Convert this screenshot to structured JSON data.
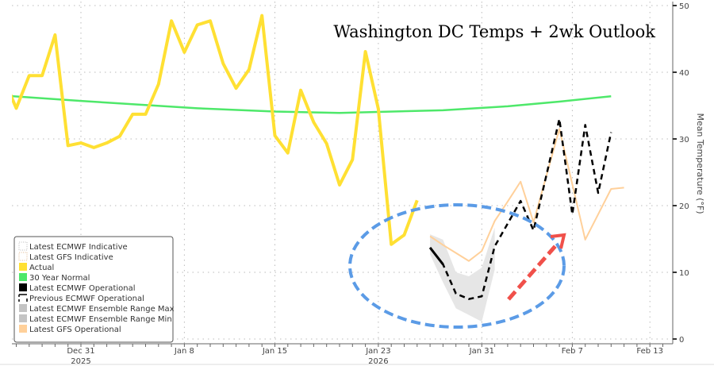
{
  "chart_data": {
    "type": "line",
    "title": "Washington DC Temps + 2wk Outlook",
    "ylabel": "Mean Temperature (°F)",
    "xlabel": "",
    "ylim": [
      0,
      50
    ],
    "yticks": [
      "0",
      "10",
      "20",
      "30",
      "40",
      "50"
    ],
    "xticks": [
      {
        "label": "Dec 31",
        "date": "2025-12-31",
        "year": "2025"
      },
      {
        "label": "Jan 8",
        "date": "2026-01-08",
        "year": ""
      },
      {
        "label": "Jan 15",
        "date": "2026-01-15",
        "year": ""
      },
      {
        "label": "Jan 23",
        "date": "2026-01-23",
        "year": "2026"
      },
      {
        "label": "Jan 31",
        "date": "2026-01-31",
        "year": ""
      },
      {
        "label": "Feb 7",
        "date": "2026-02-07",
        "year": ""
      },
      {
        "label": "Feb 13",
        "date": "2026-02-13",
        "year": ""
      }
    ],
    "grid": true,
    "legend_position": "bottom-left",
    "legend": [
      {
        "name": "Latest ECMWF Indicative",
        "swatch": "dotted",
        "color": "#bbbbbb"
      },
      {
        "name": "Latest GFS Indicative",
        "swatch": "dotted",
        "color": "#e0b890"
      },
      {
        "name": "Actual",
        "swatch": "solid",
        "color": "#ffe033"
      },
      {
        "name": "30 Year Normal",
        "swatch": "solid",
        "color": "#4ee86a"
      },
      {
        "name": "Latest ECMWF Operational",
        "swatch": "solid",
        "color": "#000000"
      },
      {
        "name": "Previous ECMWF Operational",
        "swatch": "dashed",
        "color": "#000000"
      },
      {
        "name": "Latest ECMWF Ensemble Range Max",
        "swatch": "solid",
        "color": "#c4c4c4"
      },
      {
        "name": "Latest ECMWF Ensemble Range Min",
        "swatch": "solid",
        "color": "#c4c4c4"
      },
      {
        "name": "Latest GFS Operational",
        "swatch": "solid",
        "color": "#ffd09a"
      }
    ],
    "series": [
      {
        "name": "Actual",
        "color": "#ffe033",
        "style": "solid",
        "x": [
          "2025-12-25",
          "2025-12-26",
          "2025-12-27",
          "2025-12-28",
          "2025-12-29",
          "2025-12-30",
          "2025-12-31",
          "2026-01-01",
          "2026-01-02",
          "2026-01-03",
          "2026-01-04",
          "2026-01-05",
          "2026-01-06",
          "2026-01-07",
          "2026-01-08",
          "2026-01-09",
          "2026-01-10",
          "2026-01-11",
          "2026-01-12",
          "2026-01-13",
          "2026-01-14",
          "2026-01-15",
          "2026-01-16",
          "2026-01-17",
          "2026-01-18",
          "2026-01-19",
          "2026-01-20",
          "2026-01-21",
          "2026-01-22",
          "2026-01-23",
          "2026-01-24",
          "2026-01-25",
          "2026-01-26"
        ],
        "y": [
          39.2,
          34.6,
          39.5,
          39.5,
          45.6,
          29.0,
          29.4,
          28.7,
          29.4,
          30.4,
          33.7,
          33.7,
          38.2,
          47.7,
          43.0,
          47.1,
          47.7,
          41.3,
          37.6,
          40.4,
          48.5,
          30.5,
          27.9,
          37.3,
          32.5,
          29.3,
          23.1,
          26.9,
          43.1,
          34.5,
          14.2,
          15.6,
          20.8
        ]
      },
      {
        "name": "30 Year Normal",
        "color": "#4ee86a",
        "style": "solid",
        "x": [
          "2025-12-25",
          "2025-12-31",
          "2026-01-09",
          "2026-01-15",
          "2026-01-20",
          "2026-01-28",
          "2026-02-02",
          "2026-02-06",
          "2026-02-10"
        ],
        "y": [
          36.5,
          35.7,
          34.6,
          34.1,
          33.9,
          34.3,
          34.9,
          35.6,
          36.4
        ]
      },
      {
        "name": "Latest ECMWF Operational",
        "color": "#000000",
        "style": "solid",
        "x": [
          "2026-01-27",
          "2026-01-28"
        ],
        "y": [
          13.7,
          11.2
        ]
      },
      {
        "name": "Previous ECMWF Operational",
        "color": "#000000",
        "style": "dashed",
        "x": [
          "2026-01-27",
          "2026-01-28",
          "2026-01-29",
          "2026-01-30",
          "2026-01-31",
          "2026-02-01",
          "2026-02-02",
          "2026-02-03",
          "2026-02-04",
          "2026-02-05",
          "2026-02-06",
          "2026-02-07",
          "2026-02-08",
          "2026-02-09",
          "2026-02-10"
        ],
        "y": [
          13.7,
          11.2,
          6.8,
          6.0,
          6.4,
          13.9,
          17.3,
          20.7,
          16.3,
          24.6,
          33.0,
          18.7,
          32.1,
          21.9,
          31.0
        ]
      },
      {
        "name": "Latest GFS Operational",
        "color": "#ffd09a",
        "style": "solid",
        "x": [
          "2026-01-27",
          "2026-01-28",
          "2026-01-29",
          "2026-01-30",
          "2026-01-31",
          "2026-02-01",
          "2026-02-02",
          "2026-02-03",
          "2026-02-04",
          "2026-02-05",
          "2026-02-06",
          "2026-02-07",
          "2026-02-08",
          "2026-02-09",
          "2026-02-10",
          "2026-02-11"
        ],
        "y": [
          15.4,
          14.1,
          12.9,
          11.7,
          13.2,
          17.7,
          20.6,
          23.6,
          17.5,
          24.5,
          31.5,
          23.2,
          14.9,
          18.7,
          22.5,
          22.7
        ]
      },
      {
        "name": "Latest ECMWF Ensemble Range Max",
        "color": "#e6e6e6",
        "style": "band-top",
        "x": [
          "2026-01-27",
          "2026-01-28",
          "2026-01-29",
          "2026-01-30",
          "2026-01-31",
          "2026-02-01"
        ],
        "y": [
          15.7,
          14.9,
          10.0,
          9.4,
          10.7,
          16.7
        ]
      },
      {
        "name": "Latest ECMWF Ensemble Range Min",
        "color": "#e6e6e6",
        "style": "band-bottom",
        "x": [
          "2026-01-27",
          "2026-01-28",
          "2026-01-29",
          "2026-01-30",
          "2026-01-31",
          "2026-02-01"
        ],
        "y": [
          12.7,
          8.5,
          4.6,
          3.6,
          2.6,
          10.4
        ]
      }
    ],
    "annotations": {
      "ellipse_color": "#5b9be6",
      "arrow_color": "#f0504a"
    }
  }
}
